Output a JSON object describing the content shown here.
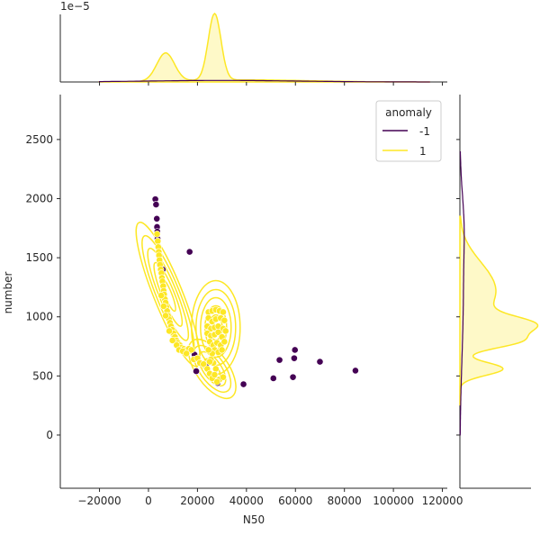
{
  "chart_data": {
    "type": "scatter",
    "subtype": "jointplot",
    "xlabel": "N50",
    "ylabel": "number",
    "xlim": [
      -36000,
      122000
    ],
    "ylim": [
      -450,
      2880
    ],
    "x_ticks": [
      -20000,
      0,
      20000,
      40000,
      60000,
      80000,
      100000,
      120000
    ],
    "y_ticks": [
      0,
      500,
      1000,
      1500,
      2000,
      2500
    ],
    "top_marginal_offset_label": "1e−5",
    "grid": false,
    "legend": {
      "title": "anomaly",
      "placement": "top-right",
      "entries": [
        {
          "label": "-1",
          "color": "#440154"
        },
        {
          "label": "1",
          "color": "#fde725"
        }
      ]
    },
    "series": [
      {
        "name": "-1",
        "color": "#440154",
        "points": [
          [
            2800,
            1995
          ],
          [
            3100,
            1950
          ],
          [
            3400,
            1830
          ],
          [
            3500,
            1760
          ],
          [
            3600,
            1720
          ],
          [
            3700,
            1660
          ],
          [
            5800,
            1400
          ],
          [
            16800,
            1550
          ],
          [
            18800,
            680
          ],
          [
            19500,
            540
          ],
          [
            23500,
            590
          ],
          [
            28200,
            440
          ],
          [
            38800,
            430
          ],
          [
            51000,
            480
          ],
          [
            53500,
            635
          ],
          [
            59000,
            490
          ],
          [
            59500,
            650
          ],
          [
            59800,
            720
          ],
          [
            70000,
            620
          ],
          [
            84500,
            545
          ]
        ]
      },
      {
        "name": "1",
        "color": "#fde725",
        "points": [
          [
            3500,
            1700
          ],
          [
            3800,
            1640
          ],
          [
            4000,
            1590
          ],
          [
            4200,
            1550
          ],
          [
            4300,
            1520
          ],
          [
            4500,
            1480
          ],
          [
            4700,
            1440
          ],
          [
            5000,
            1400
          ],
          [
            5300,
            1370
          ],
          [
            5500,
            1330
          ],
          [
            5700,
            1300
          ],
          [
            6000,
            1260
          ],
          [
            6200,
            1220
          ],
          [
            6400,
            1190
          ],
          [
            6700,
            1150
          ],
          [
            7000,
            1120
          ],
          [
            7300,
            1080
          ],
          [
            7600,
            1050
          ],
          [
            8000,
            1010
          ],
          [
            8400,
            980
          ],
          [
            8800,
            950
          ],
          [
            9200,
            920
          ],
          [
            9700,
            890
          ],
          [
            10200,
            860
          ],
          [
            10800,
            830
          ],
          [
            11400,
            800
          ],
          [
            12000,
            780
          ],
          [
            12800,
            760
          ],
          [
            13500,
            740
          ],
          [
            14500,
            730
          ],
          [
            15500,
            720
          ],
          [
            16500,
            730
          ],
          [
            17500,
            720
          ],
          [
            5200,
            1180
          ],
          [
            6200,
            1090
          ],
          [
            7000,
            1010
          ],
          [
            8500,
            880
          ],
          [
            9800,
            800
          ],
          [
            11500,
            760
          ],
          [
            12500,
            720
          ],
          [
            14000,
            710
          ],
          [
            15500,
            690
          ],
          [
            18500,
            640
          ],
          [
            20000,
            650
          ],
          [
            21000,
            610
          ],
          [
            22500,
            600
          ],
          [
            24000,
            560
          ],
          [
            25000,
            520
          ],
          [
            26000,
            480
          ],
          [
            26500,
            610
          ],
          [
            27500,
            560
          ],
          [
            27000,
            510
          ],
          [
            29000,
            470
          ],
          [
            28000,
            450
          ],
          [
            30500,
            490
          ],
          [
            25500,
            640
          ],
          [
            24500,
            1040
          ],
          [
            26000,
            1050
          ],
          [
            27500,
            1060
          ],
          [
            29000,
            1050
          ],
          [
            30500,
            1040
          ],
          [
            24500,
            990
          ],
          [
            26000,
            960
          ],
          [
            27500,
            980
          ],
          [
            29500,
            990
          ],
          [
            31000,
            970
          ],
          [
            24000,
            920
          ],
          [
            25500,
            900
          ],
          [
            27000,
            910
          ],
          [
            28500,
            920
          ],
          [
            30500,
            900
          ],
          [
            31500,
            880
          ],
          [
            24000,
            860
          ],
          [
            25500,
            840
          ],
          [
            27000,
            850
          ],
          [
            28500,
            870
          ],
          [
            30000,
            830
          ],
          [
            25000,
            790
          ],
          [
            26500,
            760
          ],
          [
            28000,
            780
          ],
          [
            29500,
            760
          ],
          [
            31000,
            790
          ],
          [
            27000,
            720
          ],
          [
            28500,
            700
          ],
          [
            30000,
            720
          ],
          [
            26000,
            690
          ],
          [
            24500,
            720
          ],
          [
            25000,
            620
          ]
        ]
      }
    ],
    "top_marginal": {
      "series": "1",
      "peaks": [
        {
          "x": 7000,
          "height": 0.55
        },
        {
          "x": 27000,
          "height": 1.3
        }
      ]
    },
    "right_marginal": {
      "series": "1",
      "peaks": [
        {
          "y": 1300,
          "height": 0.25
        },
        {
          "y": 920,
          "height": 0.62
        },
        {
          "y": 820,
          "height": 0.6
        },
        {
          "y": 560,
          "height": 0.45
        }
      ]
    },
    "kde_contours": {
      "series": "1",
      "centers": [
        [
          8000,
          1190
        ],
        [
          27500,
          910
        ],
        [
          26000,
          560
        ]
      ]
    }
  }
}
